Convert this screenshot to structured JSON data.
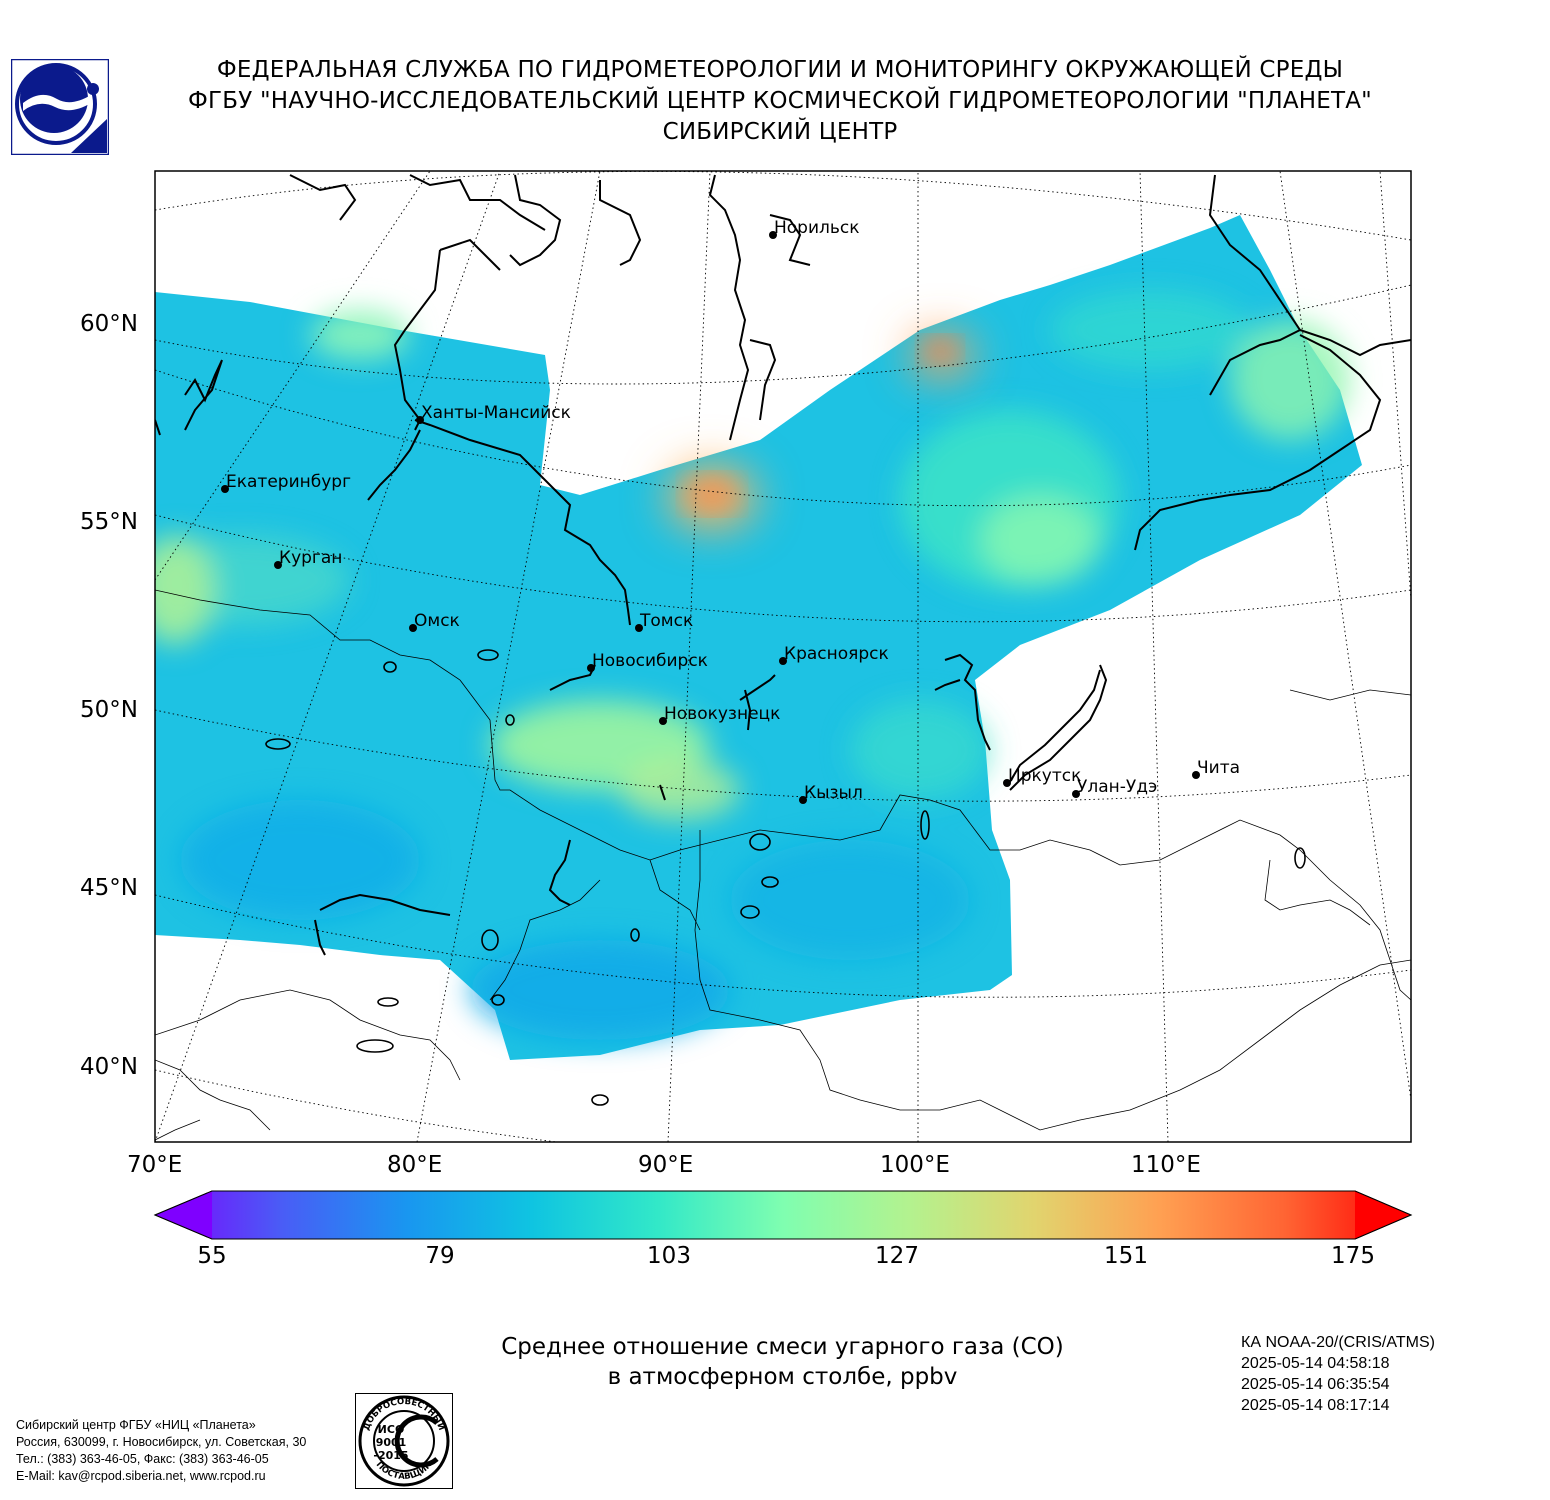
{
  "header": {
    "line1": "ФЕДЕРАЛЬНАЯ СЛУЖБА ПО ГИДРОМЕТЕОРОЛОГИИ И МОНИТОРИНГУ ОКРУЖАЮЩЕЙ СРЕДЫ",
    "line2": "ФГБУ \"НАУЧНО-ИССЛЕДОВАТЕЛЬСКИЙ ЦЕНТР КОСМИЧЕСКОЙ ГИДРОМЕТЕОРОЛОГИИ \"ПЛАНЕТА\"",
    "line3": "СИБИРСКИЙ ЦЕНТР"
  },
  "map": {
    "lat_labels": [
      "60°N",
      "55°N",
      "50°N",
      "45°N",
      "40°N"
    ],
    "lon_labels": [
      "70°E",
      "80°E",
      "90°E",
      "100°E",
      "110°E"
    ],
    "cities": [
      {
        "name": "Норильск"
      },
      {
        "name": "Ханты-Мансийск"
      },
      {
        "name": "Екатеринбург"
      },
      {
        "name": "Курган"
      },
      {
        "name": "Омск"
      },
      {
        "name": "Томск"
      },
      {
        "name": "Новосибирск"
      },
      {
        "name": "Красноярск"
      },
      {
        "name": "Новокузнецк"
      },
      {
        "name": "Кызыл"
      },
      {
        "name": "Иркутск"
      },
      {
        "name": "Улан-Удэ"
      },
      {
        "name": "Чита"
      }
    ]
  },
  "colorbar": {
    "ticks": [
      "55",
      "79",
      "103",
      "127",
      "151",
      "175"
    ],
    "min": 55,
    "max": 175,
    "colors": [
      "#7f00ff",
      "#4a5cf6",
      "#1996f0",
      "#0fc4e1",
      "#32e8c8",
      "#7ffeb0",
      "#b3f28f",
      "#e1d46e",
      "#ffa052",
      "#ff6433",
      "#ff0000"
    ]
  },
  "caption": {
    "line1": "Среднее отношение смеси угарного газа (CO)",
    "line2": "в атмосферном столбе, ppbv"
  },
  "satellite": {
    "name": "КА NOAA-20/(CRIS/ATMS)",
    "times": [
      "2025-05-14 04:58:18",
      "2025-05-14 06:35:54",
      "2025-05-14 08:17:14"
    ]
  },
  "contact": {
    "line1": "Сибирский центр ФГБУ «НИЦ «Планета»",
    "line2": "Россия, 630099, г. Новосибирск, ул. Советская, 30",
    "line3": "Тел.: (383) 363-46-05, Факс: (383) 363-46-05",
    "line4": "E-Mail: kav@rcpod.siberia.net, www.rcpod.ru"
  },
  "iso_stamp": {
    "top": "ДОБРОСОВЕСТНЫЙ",
    "line1": "ИСО",
    "line2": "9001",
    "line3": "-2015",
    "bottom": "ПОСТАВЩИК"
  }
}
